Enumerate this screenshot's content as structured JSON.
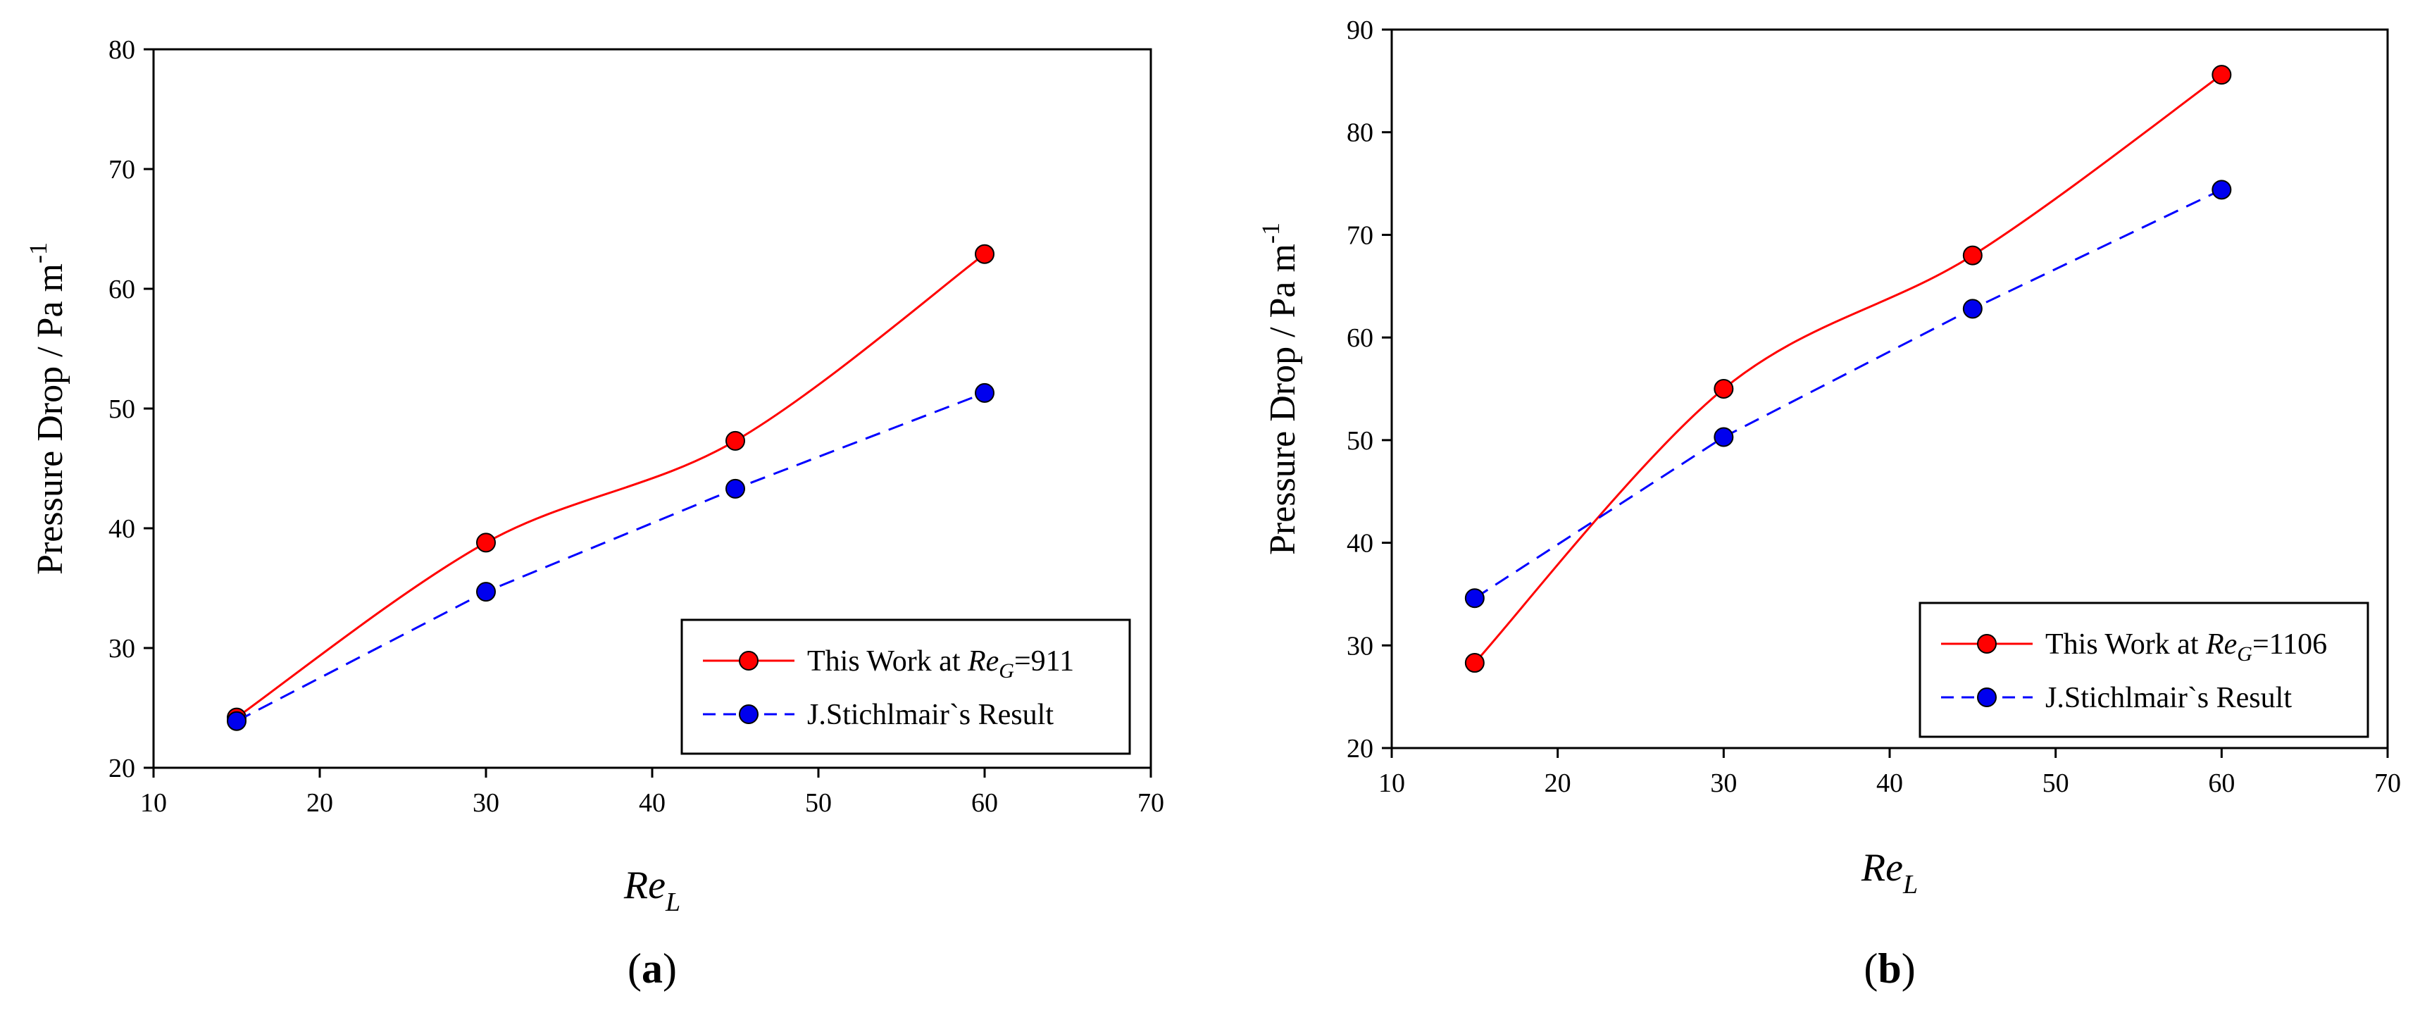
{
  "chart_data": [
    {
      "type": "line",
      "panel": "a",
      "caption_letter": "a",
      "xlabel_main": "Re",
      "xlabel_sub": "L",
      "ylabel_main": "Pressure Drop / Pa m",
      "ylabel_sup": "-1",
      "xlim": [
        10,
        70
      ],
      "ylim": [
        20,
        80
      ],
      "xticks": [
        10,
        20,
        30,
        40,
        50,
        60,
        70
      ],
      "yticks": [
        20,
        30,
        40,
        50,
        60,
        70,
        80
      ],
      "legend_position": "bottom-right",
      "series": [
        {
          "name": "This Work",
          "legend_prefix": "This Work at ",
          "legend_italic": "Re",
          "legend_sub": "G",
          "legend_suffix": "=911",
          "color": "#ff0000",
          "marker_color": "#ff0000",
          "line_style": "solid",
          "x": [
            15,
            30,
            45,
            60
          ],
          "y": [
            24.2,
            38.8,
            47.3,
            62.9
          ]
        },
        {
          "name": "J.Stichlmair`s Result",
          "legend_prefix": "J.Stichlmair`s Result",
          "legend_italic": "",
          "legend_sub": "",
          "legend_suffix": "",
          "color": "#0000ff",
          "marker_color": "#0000ee",
          "line_style": "dashed",
          "x": [
            15,
            30,
            45,
            60
          ],
          "y": [
            23.9,
            34.7,
            43.3,
            51.3
          ]
        }
      ]
    },
    {
      "type": "line",
      "panel": "b",
      "caption_letter": "b",
      "xlabel_main": "Re",
      "xlabel_sub": "L",
      "ylabel_main": "Pressure Drop / Pa m",
      "ylabel_sup": "-1",
      "xlim": [
        10,
        70
      ],
      "ylim": [
        20,
        90
      ],
      "xticks": [
        10,
        20,
        30,
        40,
        50,
        60,
        70
      ],
      "yticks": [
        20,
        30,
        40,
        50,
        60,
        70,
        80,
        90
      ],
      "legend_position": "bottom-right",
      "series": [
        {
          "name": "This Work",
          "legend_prefix": "This Work at ",
          "legend_italic": "Re",
          "legend_sub": "G",
          "legend_suffix": "=1106",
          "color": "#ff0000",
          "marker_color": "#ff0000",
          "line_style": "solid",
          "x": [
            15,
            30,
            45,
            60
          ],
          "y": [
            28.3,
            55.0,
            68.0,
            85.6
          ]
        },
        {
          "name": "J.Stichlmair`s Result",
          "legend_prefix": "J.Stichlmair`s Result",
          "legend_italic": "",
          "legend_sub": "",
          "legend_suffix": "",
          "color": "#0000ff",
          "marker_color": "#0000ee",
          "line_style": "dashed",
          "x": [
            15,
            30,
            45,
            60
          ],
          "y": [
            34.6,
            50.3,
            62.8,
            74.4
          ]
        }
      ]
    }
  ]
}
